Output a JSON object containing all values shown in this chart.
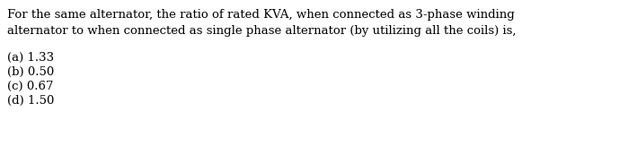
{
  "line1": "For the same alternator, the ratio of rated KVA, when connected as 3-phase winding",
  "line2": "alternator to when connected as single phase alternator (by utilizing all the coils) is,",
  "options": [
    "(a) 1.33",
    "(b) 0.50",
    "(c) 0.67",
    "(d) 1.50"
  ],
  "background_color": "#ffffff",
  "text_color": "#000000",
  "font_size": 9.5,
  "fig_width": 7.09,
  "fig_height": 1.73,
  "dpi": 100
}
